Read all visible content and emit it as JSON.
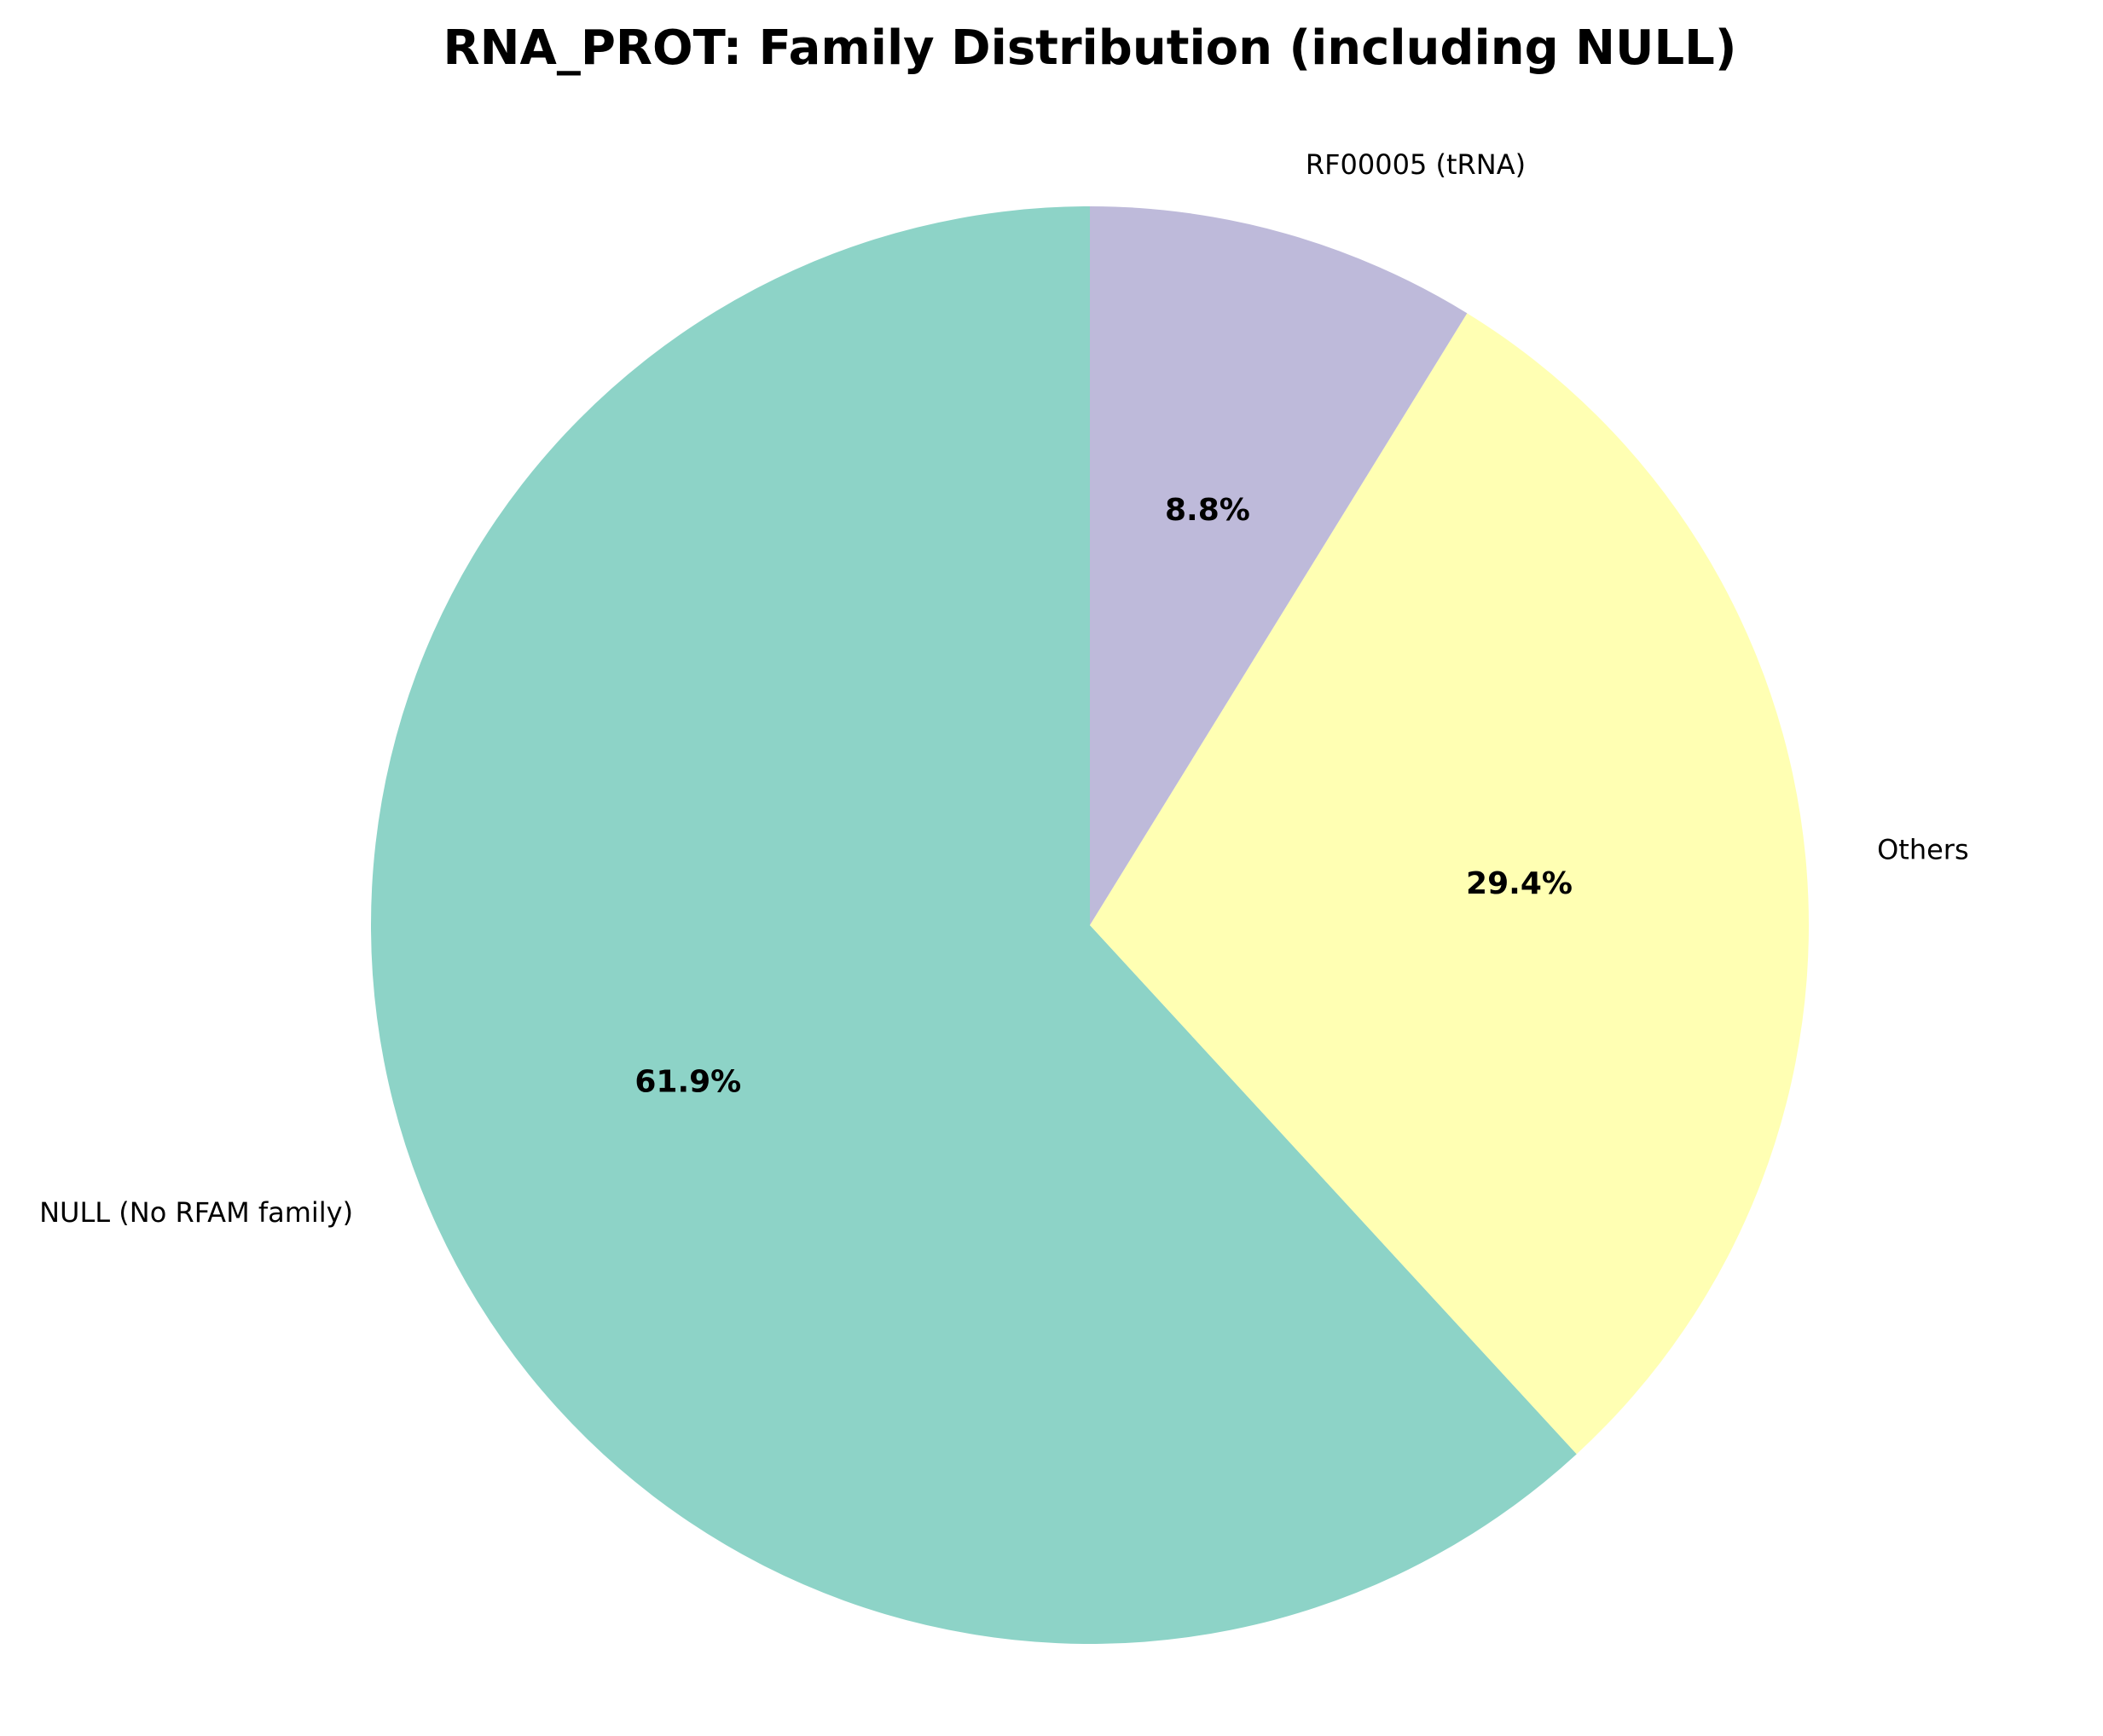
{
  "chart_data": {
    "type": "pie",
    "title": "RNA_PROT: Family Distribution (including NULL)",
    "slices": [
      {
        "label": "NULL (No RFAM family)",
        "value": 61.9,
        "pct_label": "61.9%",
        "color": "#8dd3c7"
      },
      {
        "label": "Others",
        "value": 29.4,
        "pct_label": "29.4%",
        "color": "#ffffb3"
      },
      {
        "label": "RF00005 (tRNA)",
        "value": 8.8,
        "pct_label": "8.8%",
        "color": "#bebada"
      }
    ],
    "start_angle_deg": 90,
    "direction": "counterclockwise"
  }
}
